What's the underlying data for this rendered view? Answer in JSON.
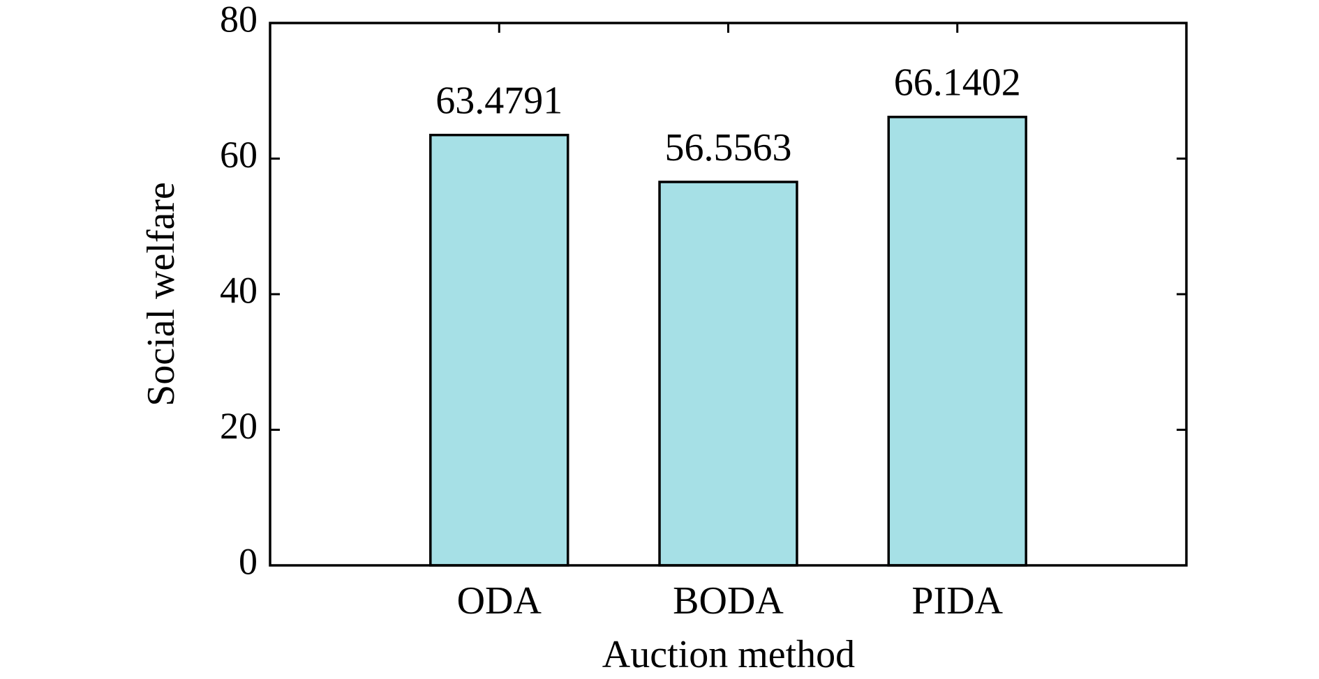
{
  "chart_data": {
    "type": "bar",
    "xlabel": "Auction method",
    "ylabel": "Social welfare",
    "categories": [
      "ODA",
      "BODA",
      "PIDA"
    ],
    "values": [
      63.4791,
      56.5563,
      66.1402
    ],
    "color": "#a6e0e6",
    "ylim": [
      0,
      80
    ],
    "yticks": [
      0,
      20,
      40,
      60,
      80
    ]
  }
}
